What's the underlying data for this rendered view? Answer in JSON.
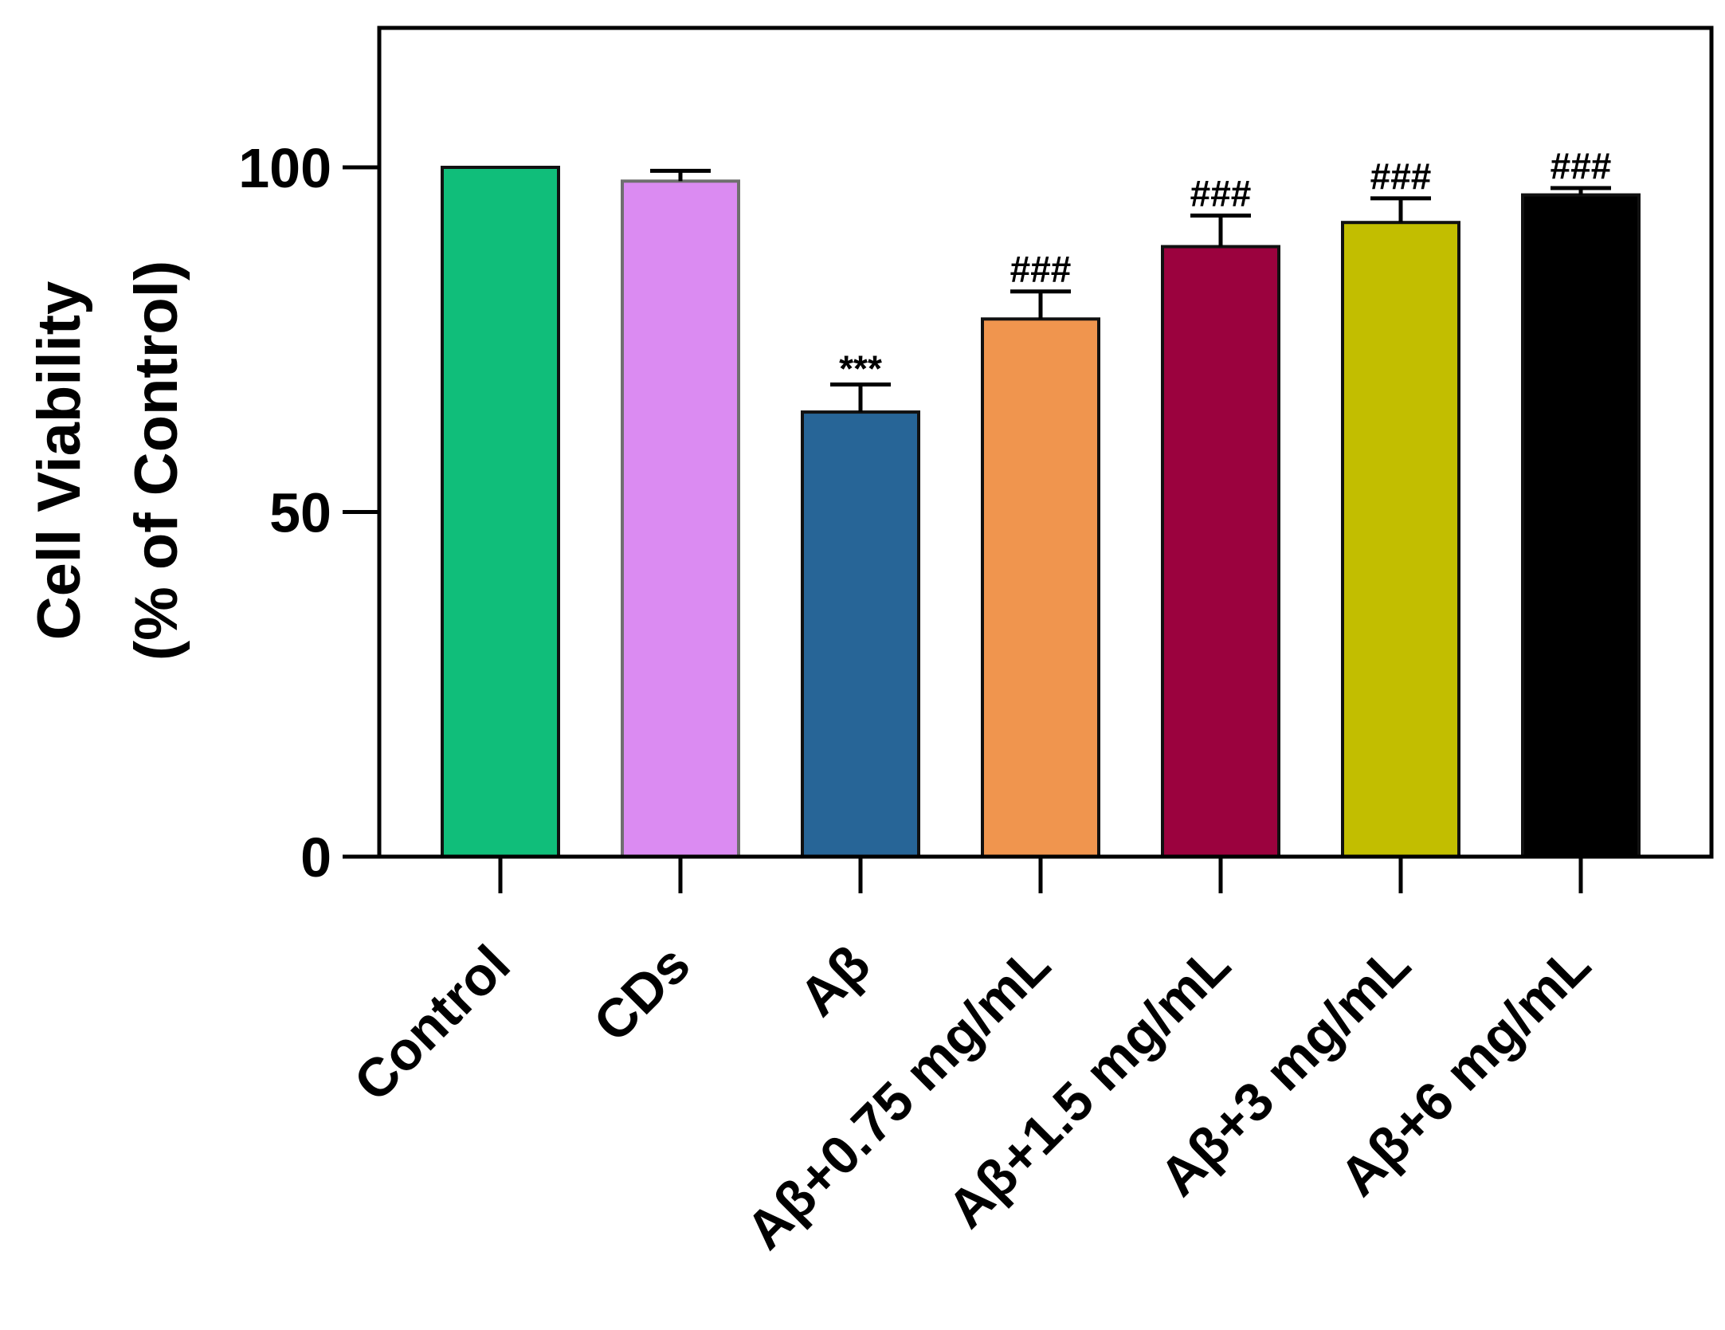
{
  "chart_data": {
    "type": "bar",
    "title": "",
    "ylabel_line1": "Cell Viability",
    "ylabel_line2": "(% of Control)",
    "xlabel": "",
    "ylim": [
      0,
      120
    ],
    "yticks": [
      0,
      50,
      100
    ],
    "ytick_labels": [
      "0",
      "50",
      "100"
    ],
    "grid": false,
    "categories": [
      "Control",
      "CDs",
      "Aβ",
      "Aβ+0.75 mg/mL",
      "Aβ+1.5 mg/mL",
      "Aβ+3 mg/mL",
      "Aβ+6 mg/mL"
    ],
    "values": [
      100,
      98,
      64.5,
      78,
      88.5,
      92,
      96
    ],
    "errors": [
      0,
      1.5,
      4,
      4,
      4.5,
      3.5,
      1
    ],
    "annotations": [
      "",
      "",
      "***",
      "###",
      "###",
      "###",
      "###"
    ],
    "colors": [
      "#10BE7A",
      "#DB8BF2",
      "#276597",
      "#F0954E",
      "#9B023E",
      "#C2BE00",
      "#000000"
    ]
  }
}
